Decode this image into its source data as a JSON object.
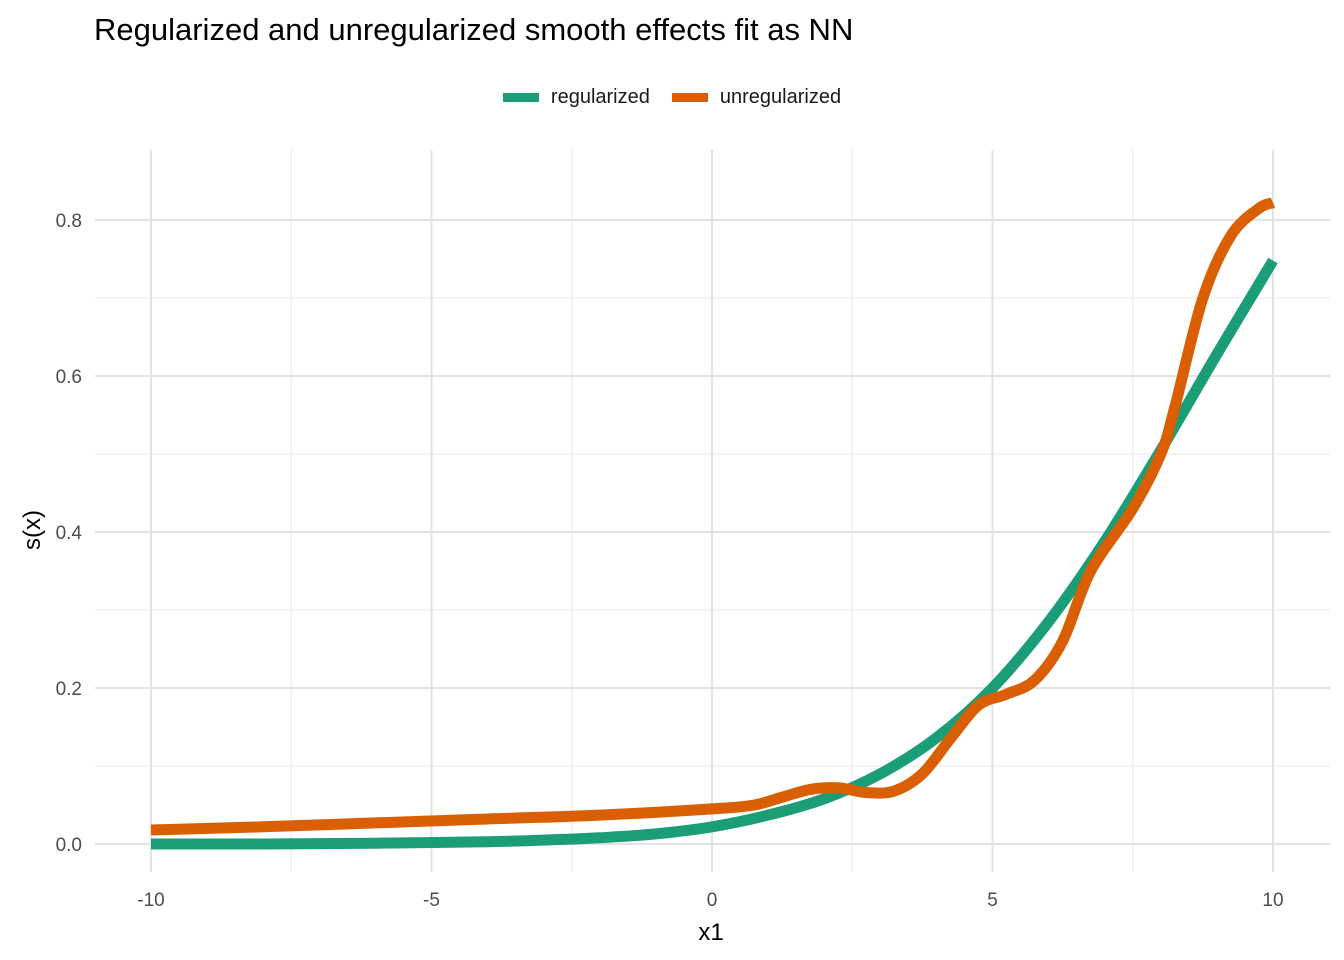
{
  "chart_data": {
    "type": "line",
    "title": "Regularized and unregularized smooth effects fit as NN",
    "xlabel": "x1",
    "ylabel": "s(x)",
    "xlim": [
      -10,
      10
    ],
    "ylim": [
      0,
      0.8
    ],
    "x_ticks": [
      -10,
      -5,
      0,
      5,
      10
    ],
    "x_tick_labels": [
      "-10",
      "-5",
      "0",
      "5",
      "10"
    ],
    "y_ticks": [
      0.0,
      0.2,
      0.4,
      0.6,
      0.8
    ],
    "y_tick_labels": [
      "0.0",
      "0.2",
      "0.4",
      "0.6",
      "0.8"
    ],
    "grid": true,
    "legend_position": "top",
    "series": [
      {
        "name": "regularized",
        "color": "#1b9e77",
        "points": [
          [
            -10,
            0.0
          ],
          [
            -8,
            0.0
          ],
          [
            -6,
            0.001
          ],
          [
            -4,
            0.003
          ],
          [
            -3,
            0.005
          ],
          [
            -2,
            0.008
          ],
          [
            -1,
            0.013
          ],
          [
            0,
            0.022
          ],
          [
            1,
            0.037
          ],
          [
            2,
            0.058
          ],
          [
            3,
            0.09
          ],
          [
            4,
            0.136
          ],
          [
            5,
            0.2
          ],
          [
            6,
            0.285
          ],
          [
            7,
            0.388
          ],
          [
            8,
            0.505
          ],
          [
            9,
            0.628
          ],
          [
            10,
            0.748
          ]
        ]
      },
      {
        "name": "unregularized",
        "color": "#d95f02",
        "points": [
          [
            -10,
            0.018
          ],
          [
            -8,
            0.022
          ],
          [
            -6,
            0.027
          ],
          [
            -4,
            0.032
          ],
          [
            -2,
            0.037
          ],
          [
            0,
            0.045
          ],
          [
            0.75,
            0.05
          ],
          [
            1.25,
            0.06
          ],
          [
            1.75,
            0.07
          ],
          [
            2.25,
            0.072
          ],
          [
            2.75,
            0.066
          ],
          [
            3.25,
            0.068
          ],
          [
            3.75,
            0.09
          ],
          [
            4.25,
            0.135
          ],
          [
            4.75,
            0.178
          ],
          [
            5.25,
            0.192
          ],
          [
            5.75,
            0.21
          ],
          [
            6.25,
            0.26
          ],
          [
            6.75,
            0.35
          ],
          [
            7.5,
            0.43
          ],
          [
            8.0,
            0.5
          ],
          [
            8.25,
            0.56
          ],
          [
            8.75,
            0.7
          ],
          [
            9.25,
            0.78
          ],
          [
            9.75,
            0.815
          ],
          [
            10,
            0.822
          ]
        ]
      }
    ]
  }
}
